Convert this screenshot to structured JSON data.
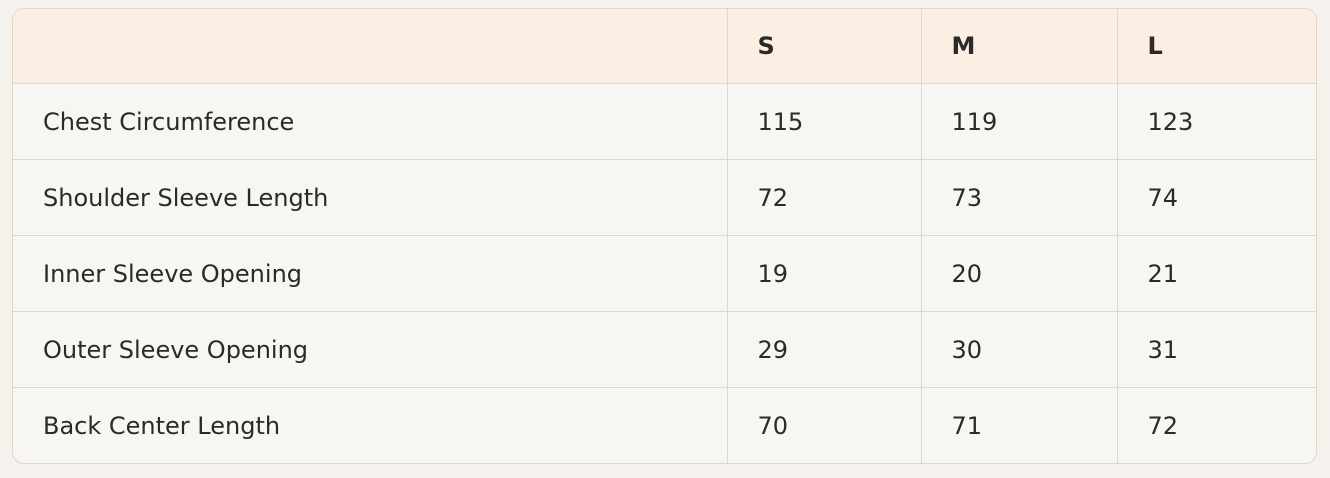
{
  "table": {
    "headers": [
      "",
      "S",
      "M",
      "L"
    ],
    "rows": [
      {
        "label": "Chest Circumference",
        "values": [
          "115",
          "119",
          "123"
        ]
      },
      {
        "label": "Shoulder Sleeve Length",
        "values": [
          "72",
          "73",
          "74"
        ]
      },
      {
        "label": "Inner Sleeve Opening",
        "values": [
          "19",
          "20",
          "21"
        ]
      },
      {
        "label": "Outer Sleeve Opening",
        "values": [
          "29",
          "30",
          "31"
        ]
      },
      {
        "label": "Back Center Length",
        "values": [
          "70",
          "71",
          "72"
        ]
      }
    ]
  },
  "colors": {
    "header_bg": "#fbeee2",
    "body_bg": "#f8f6f3",
    "border": "#e4d5c7"
  }
}
